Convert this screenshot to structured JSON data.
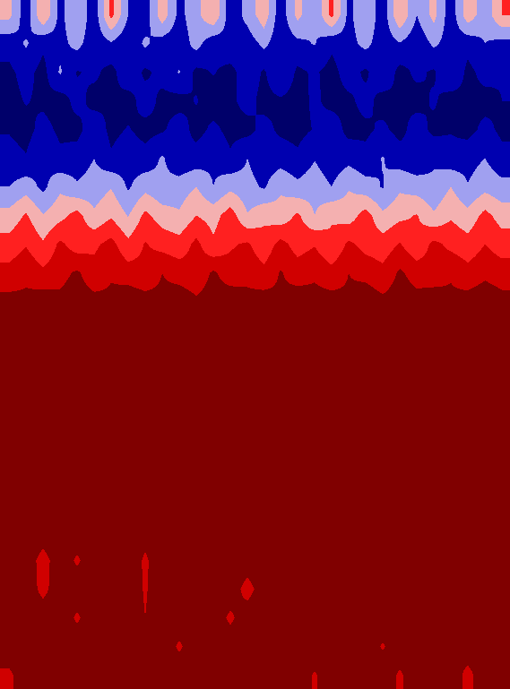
{
  "chart_data": {
    "type": "heatmap",
    "tick_labels": false,
    "zlim": [
      0,
      1
    ],
    "cells": [
      [
        0.5,
        0.2,
        0.6,
        0.25,
        0.45,
        0.2,
        0.65,
        0.3,
        0.2,
        0.55,
        0.25,
        0.4,
        0.6,
        0.2,
        0.35,
        0.55,
        0.2,
        0.5,
        0.3,
        0.65,
        0.25,
        0.45,
        0.2,
        0.6,
        0.3,
        0.5,
        0.2,
        0.55,
        0.35,
        0.6
      ],
      [
        0.2,
        0.32,
        0.18,
        0.25,
        0.35,
        0.2,
        0.28,
        0.18,
        0.33,
        0.22,
        0.2,
        0.36,
        0.19,
        0.27,
        0.22,
        0.34,
        0.2,
        0.26,
        0.31,
        0.18,
        0.24,
        0.35,
        0.2,
        0.29,
        0.19,
        0.33,
        0.23,
        0.2,
        0.3,
        0.25
      ],
      [
        0.12,
        0.2,
        0.1,
        0.32,
        0.14,
        0.18,
        0.1,
        0.26,
        0.12,
        0.2,
        0.31,
        0.11,
        0.16,
        0.1,
        0.24,
        0.13,
        0.3,
        0.12,
        0.17,
        0.1,
        0.22,
        0.12,
        0.28,
        0.1,
        0.18,
        0.13,
        0.3,
        0.11,
        0.2,
        0.16
      ],
      [
        0.1,
        0.16,
        0.12,
        0.08,
        0.2,
        0.1,
        0.14,
        0.09,
        0.22,
        0.11,
        0.1,
        0.16,
        0.08,
        0.12,
        0.2,
        0.1,
        0.13,
        0.09,
        0.18,
        0.1,
        0.12,
        0.2,
        0.09,
        0.14,
        0.1,
        0.17,
        0.08,
        0.12,
        0.1,
        0.15
      ],
      [
        0.14,
        0.1,
        0.2,
        0.12,
        0.1,
        0.25,
        0.11,
        0.16,
        0.1,
        0.13,
        0.22,
        0.1,
        0.18,
        0.11,
        0.1,
        0.2,
        0.12,
        0.1,
        0.16,
        0.24,
        0.1,
        0.12,
        0.18,
        0.1,
        0.22,
        0.11,
        0.14,
        0.1,
        0.19,
        0.12
      ],
      [
        0.2,
        0.16,
        0.28,
        0.18,
        0.22,
        0.3,
        0.17,
        0.24,
        0.2,
        0.32,
        0.18,
        0.21,
        0.27,
        0.17,
        0.3,
        0.2,
        0.23,
        0.18,
        0.29,
        0.2,
        0.25,
        0.19,
        0.31,
        0.22,
        0.18,
        0.28,
        0.2,
        0.24,
        0.3,
        0.19
      ],
      [
        0.3,
        0.38,
        0.26,
        0.42,
        0.32,
        0.36,
        0.44,
        0.28,
        0.4,
        0.33,
        0.37,
        0.45,
        0.3,
        0.41,
        0.35,
        0.28,
        0.43,
        0.34,
        0.39,
        0.3,
        0.44,
        0.36,
        0.29,
        0.42,
        0.38,
        0.33,
        0.45,
        0.31,
        0.4,
        0.35
      ],
      [
        0.5,
        0.62,
        0.46,
        0.55,
        0.66,
        0.48,
        0.58,
        0.44,
        0.64,
        0.52,
        0.47,
        0.6,
        0.54,
        0.68,
        0.46,
        0.57,
        0.5,
        0.63,
        0.45,
        0.59,
        0.52,
        0.67,
        0.48,
        0.56,
        0.61,
        0.47,
        0.58,
        0.5,
        0.65,
        0.53
      ],
      [
        0.66,
        0.74,
        0.62,
        0.78,
        0.68,
        0.72,
        0.8,
        0.64,
        0.76,
        0.7,
        0.66,
        0.79,
        0.63,
        0.73,
        0.77,
        0.65,
        0.8,
        0.69,
        0.74,
        0.62,
        0.78,
        0.7,
        0.67,
        0.76,
        0.64,
        0.79,
        0.71,
        0.66,
        0.75,
        0.68
      ],
      [
        0.8,
        0.86,
        0.78,
        0.84,
        0.9,
        0.8,
        0.87,
        0.82,
        0.79,
        0.88,
        0.83,
        0.8,
        0.9,
        0.81,
        0.85,
        0.79,
        0.89,
        0.82,
        0.86,
        0.8,
        0.88,
        0.84,
        0.79,
        0.9,
        0.83,
        0.81,
        0.87,
        0.8,
        0.85,
        0.82
      ],
      [
        0.92,
        0.9,
        0.95,
        0.91,
        0.94,
        0.92,
        0.9,
        0.96,
        0.93,
        0.91,
        0.95,
        0.9,
        0.93,
        0.96,
        0.91,
        0.94,
        0.9,
        0.95,
        0.92,
        0.93,
        0.9,
        0.96,
        0.91,
        0.94,
        0.92,
        0.95,
        0.9,
        0.93,
        0.96,
        0.92
      ],
      [
        1,
        1,
        1,
        1,
        1,
        1,
        1,
        1,
        1,
        1,
        1,
        1,
        1,
        1,
        1,
        1,
        1,
        1,
        1,
        1,
        1,
        1,
        1,
        1,
        1,
        1,
        1,
        1,
        1,
        1
      ],
      [
        1,
        1,
        1,
        1,
        1,
        1,
        1,
        1,
        1,
        1,
        1,
        1,
        1,
        1,
        1,
        1,
        1,
        1,
        1,
        1,
        1,
        1,
        1,
        1,
        1,
        1,
        1,
        1,
        1,
        1
      ],
      [
        1,
        1,
        1,
        1,
        1,
        1,
        1,
        1,
        1,
        1,
        1,
        1,
        1,
        1,
        1,
        1,
        1,
        1,
        1,
        1,
        1,
        1,
        1,
        1,
        1,
        1,
        1,
        1,
        1,
        1
      ],
      [
        1,
        1,
        1,
        1,
        0.9,
        1,
        1,
        1,
        1,
        1,
        1,
        1,
        1,
        1,
        1,
        1,
        1,
        1,
        1,
        1,
        1,
        1,
        1,
        1,
        1,
        1,
        1,
        1,
        1,
        1
      ],
      [
        1,
        1,
        1,
        1,
        1,
        1,
        1,
        1,
        1,
        1,
        1,
        1,
        1,
        1,
        1,
        1,
        1,
        1,
        1,
        1,
        1,
        1,
        1,
        1,
        1,
        1,
        1,
        1,
        1,
        1
      ],
      [
        1,
        1,
        1,
        1,
        1,
        1,
        1,
        1,
        1,
        1,
        1,
        1,
        1,
        1,
        1,
        1,
        1,
        1,
        1,
        1,
        1,
        1,
        1,
        1,
        1,
        1,
        1,
        1,
        1,
        1
      ],
      [
        1,
        1,
        1,
        1,
        1,
        1,
        1,
        1,
        1,
        1,
        1,
        1,
        1,
        1,
        1,
        1,
        1,
        1,
        1,
        1,
        1,
        1,
        1,
        1,
        1,
        1,
        1,
        1,
        1,
        1
      ],
      [
        1,
        1,
        1,
        1,
        1,
        1,
        1,
        1,
        0.95,
        1,
        1,
        1,
        1,
        1,
        1,
        1,
        1,
        1,
        1,
        1,
        1,
        1,
        1,
        1,
        1,
        1,
        1,
        1,
        1,
        1
      ],
      [
        1,
        1,
        0.8,
        1,
        0.85,
        1,
        1,
        1,
        0.85,
        1,
        1,
        1,
        1,
        1,
        1,
        1,
        1,
        1,
        1,
        1,
        1,
        1,
        1,
        1,
        1,
        1,
        1,
        1,
        1,
        1
      ],
      [
        1,
        1,
        0.82,
        1,
        1,
        1,
        1,
        1,
        0.86,
        1,
        1,
        1,
        1,
        1,
        0.8,
        1,
        1,
        1,
        1,
        1,
        1,
        1,
        1,
        1,
        1,
        1,
        1,
        1,
        1,
        1
      ],
      [
        1,
        1,
        1,
        1,
        0.85,
        1,
        1,
        1,
        0.88,
        1,
        1,
        1,
        1,
        0.84,
        1,
        1,
        1,
        1,
        1,
        1,
        0.9,
        1,
        1,
        1,
        1,
        1,
        1,
        1,
        1,
        1
      ],
      [
        1,
        1,
        1,
        1,
        1,
        1,
        1,
        1,
        1,
        1,
        0.85,
        1,
        1,
        1,
        1,
        1,
        0.9,
        1,
        1,
        1,
        1,
        1,
        0.86,
        1,
        1,
        1,
        0.88,
        1,
        1,
        1
      ],
      [
        0.84,
        1,
        1,
        1,
        1,
        1,
        1,
        1,
        1,
        1,
        1,
        1,
        1,
        1,
        1,
        1,
        1,
        1,
        0.86,
        1,
        1,
        1,
        1,
        0.85,
        1,
        1,
        1,
        0.82,
        1,
        0.88
      ]
    ]
  }
}
